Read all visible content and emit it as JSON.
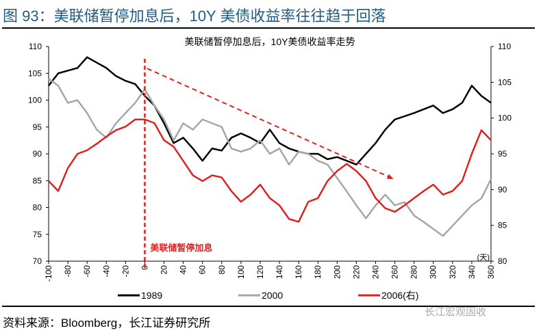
{
  "header": {
    "title": "图 93：美联储暂停加息后，10Y 美债收益率往往趋于回落"
  },
  "footer": {
    "source": "资料来源：Bloomberg，长江证券研究所",
    "watermark": "长江宏观固收"
  },
  "chart_data": {
    "type": "line",
    "title": "美联储暂停加息后，10Y美债收益率走势",
    "xlabel": "(天)",
    "xlim": [
      -100,
      360
    ],
    "xticks": [
      -100,
      -80,
      -60,
      -40,
      -20,
      0,
      20,
      40,
      60,
      80,
      100,
      120,
      140,
      160,
      180,
      200,
      220,
      240,
      260,
      280,
      300,
      320,
      340,
      360
    ],
    "ylim_left": [
      70,
      110
    ],
    "yticks_left": [
      70,
      75,
      80,
      85,
      90,
      95,
      100,
      105,
      110
    ],
    "ylim_right": [
      80,
      110
    ],
    "yticks_right": [
      80,
      85,
      90,
      95,
      100,
      105,
      110
    ],
    "grid": false,
    "legend_placement": "bottom",
    "annotation": {
      "text": "美联储暂停加息",
      "x": 0,
      "color": "#e02020"
    },
    "trend_arrow": {
      "from": [
        2.5,
        105.9
      ],
      "to": [
        258.7,
        85.3
      ],
      "color": "#e02020"
    },
    "x": [
      -100,
      -90,
      -80,
      -70,
      -60,
      -50,
      -40,
      -30,
      -20,
      -10,
      0,
      10,
      20,
      30,
      40,
      50,
      60,
      70,
      80,
      90,
      100,
      110,
      120,
      130,
      140,
      150,
      160,
      170,
      180,
      190,
      200,
      210,
      220,
      230,
      240,
      250,
      260,
      270,
      280,
      290,
      300,
      310,
      320,
      330,
      340,
      350,
      360
    ],
    "series": [
      {
        "name": "1989",
        "axis": "left",
        "color": "#000000",
        "values": [
          102.7,
          105,
          105.5,
          106,
          108,
          107,
          106,
          104.5,
          103.6,
          103,
          100.8,
          99,
          95.7,
          92,
          93,
          91,
          88.7,
          91,
          90.6,
          93,
          93.8,
          93,
          92,
          94.5,
          92,
          91,
          90.4,
          90,
          90,
          89,
          89.4,
          88.7,
          88,
          90,
          92,
          94.5,
          96.4,
          97,
          97.6,
          98.3,
          99,
          97.6,
          98.3,
          99.5,
          102.7,
          100.8,
          99.5
        ]
      },
      {
        "name": "2000",
        "axis": "left",
        "color": "#a6a6a6",
        "values": [
          104,
          102.7,
          99.5,
          100,
          97.6,
          94.5,
          93,
          95.7,
          97.6,
          99.5,
          102,
          99,
          96.4,
          92.5,
          95.7,
          94.5,
          96.4,
          95.7,
          95,
          91,
          90.4,
          91,
          92.5,
          90,
          91,
          88,
          90.4,
          90,
          88.7,
          88,
          85.5,
          83,
          80.4,
          78,
          80.4,
          82.4,
          80.4,
          81,
          78.5,
          77.3,
          76,
          74.7,
          76.6,
          78.5,
          80.4,
          81.7,
          85.3
        ]
      },
      {
        "name": "2006(右)",
        "axis": "right",
        "color": "#e02020",
        "values": [
          91.2,
          89.8,
          93,
          95,
          95.5,
          96.4,
          97.4,
          98.3,
          98.8,
          99.8,
          99.8,
          99.3,
          96.9,
          96,
          94,
          92,
          91.2,
          92,
          91.7,
          89.8,
          88.3,
          89.3,
          90.7,
          88.8,
          87.8,
          85.9,
          85.5,
          88.3,
          88.8,
          91.2,
          92.6,
          93.6,
          92.6,
          91.2,
          88.8,
          87.4,
          86.9,
          87.8,
          88.8,
          89.8,
          90.7,
          89.3,
          89.8,
          91.2,
          95,
          98.3,
          96.9
        ]
      }
    ]
  }
}
